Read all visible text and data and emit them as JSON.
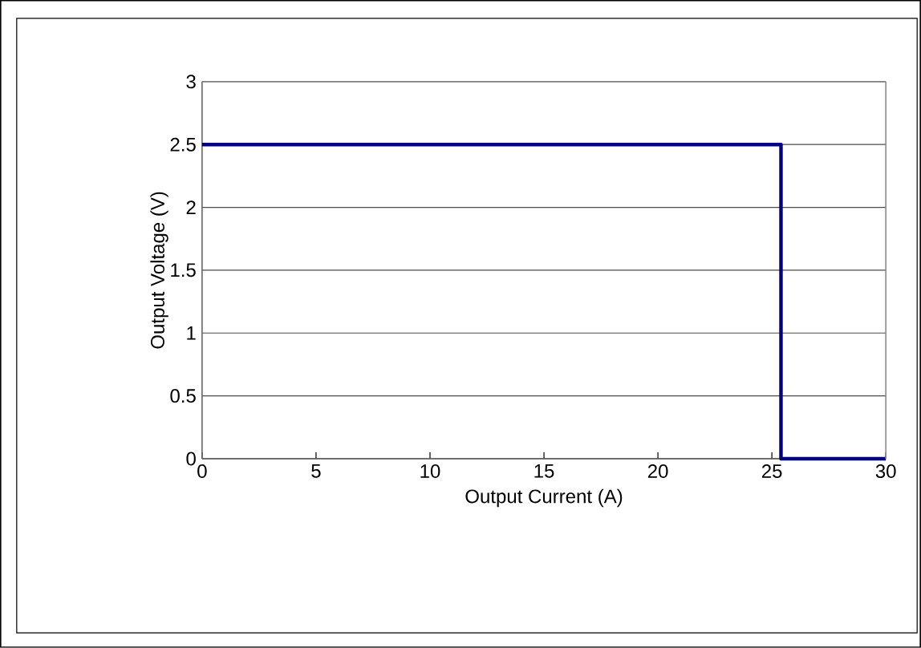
{
  "chart_data": {
    "type": "line",
    "xlabel": "Output Current (A)",
    "ylabel": "Output Voltage (V)",
    "x": [
      0,
      25.4,
      25.4,
      30
    ],
    "series": [
      {
        "color": "#000080",
        "values": [
          2.5,
          2.5,
          0,
          0
        ]
      }
    ],
    "xlim": [
      0,
      30
    ],
    "ylim": [
      0,
      3
    ],
    "xticks": [
      0,
      5,
      10,
      15,
      20,
      25,
      30
    ],
    "yticks": [
      0,
      0.5,
      1,
      1.5,
      2,
      2.5,
      3
    ],
    "grid": "y",
    "marker": "none",
    "line_style": "solid"
  }
}
